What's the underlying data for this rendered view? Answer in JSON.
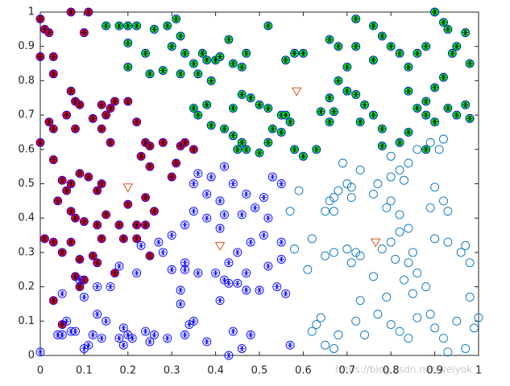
{
  "chart_data": {
    "type": "scatter",
    "xlim": [
      0,
      1
    ],
    "ylim": [
      0,
      1
    ],
    "xticks": [
      0,
      0.1,
      0.2,
      0.3,
      0.4,
      0.5,
      0.6,
      0.7,
      0.8,
      0.9,
      1
    ],
    "yticks": [
      0,
      0.1,
      0.2,
      0.3,
      0.4,
      0.5,
      0.6,
      0.7,
      0.8,
      0.9,
      1
    ],
    "watermark": "https://blog.csdn.net/weiyok",
    "series": [
      {
        "marker": "circle-star",
        "color": "#0000ff",
        "facecolor": "#ff0000",
        "x": [
          0,
          0.01,
          0.02,
          0.07,
          0.11,
          0.1,
          0.03,
          0,
          0.03,
          0.07,
          0.08,
          0.09,
          0.06,
          0.02,
          0.03,
          0.08,
          0.12,
          0.14,
          0.16,
          0.17,
          0.15,
          0.14,
          0.16,
          0.22,
          0.2,
          0.24,
          0.25,
          0.28,
          0.32,
          0.33,
          0.35,
          0.31,
          0.3,
          0.25,
          0.23,
          0,
          0.03,
          0.05,
          0.09,
          0.07,
          0.06,
          0.11,
          0.14,
          0.13,
          0.04,
          0.07,
          0.08,
          0.1,
          0.13,
          0.15,
          0.2,
          0.24,
          0.26,
          0.24,
          0.22,
          0.18,
          0.01,
          0.03,
          0.07,
          0.05,
          0.09,
          0.12,
          0.14,
          0.19,
          0.22,
          0.25,
          0.08,
          0.1,
          0.09,
          0.03,
          0.05,
          0.13,
          0.17
        ],
        "y": [
          0.98,
          0.95,
          0.94,
          1,
          1,
          0.94,
          0.87,
          0.87,
          0.82,
          0.77,
          0.74,
          0.73,
          0.7,
          0.68,
          0.66,
          0.66,
          0.69,
          0.73,
          0.72,
          0.74,
          0.7,
          0.66,
          0.62,
          0.68,
          0.74,
          0.62,
          0.61,
          0.62,
          0.61,
          0.62,
          0.6,
          0.56,
          0.52,
          0.55,
          0.58,
          0.62,
          0.57,
          0.51,
          0.53,
          0.5,
          0.48,
          0.52,
          0.5,
          0.48,
          0.45,
          0.42,
          0.4,
          0.39,
          0.38,
          0.41,
          0.44,
          0.46,
          0.42,
          0.38,
          0.38,
          0.38,
          0.34,
          0.33,
          0.33,
          0.3,
          0.28,
          0.29,
          0.34,
          0.34,
          0.34,
          0.29,
          0.23,
          0.22,
          0.2,
          0.16,
          0.09,
          0.27,
          0.24
        ]
      },
      {
        "marker": "circle-star",
        "color": "#0000ff",
        "facecolor": "#00ff00",
        "x": [
          0.15,
          0.18,
          0.2,
          0.22,
          0.26,
          0.29,
          0.31,
          0.32,
          0.3,
          0.2,
          0.24,
          0.2,
          0.25,
          0.28,
          0.32,
          0.36,
          0.35,
          0.33,
          0.37,
          0.38,
          0.4,
          0.41,
          0.44,
          0.46,
          0.47,
          0.43,
          0.52,
          0.39,
          0.35,
          0.36,
          0.38,
          0.39,
          0.42,
          0.44,
          0.46,
          0.48,
          0.5,
          0.52,
          0.55,
          0.56,
          0.57,
          0.55,
          0.53,
          0.52,
          0.46,
          0.44,
          0.45,
          0.47,
          0.5,
          0.58,
          0.6,
          0.63,
          0.64,
          0.66,
          0.67,
          0.66,
          0.7,
          0.68,
          0.7,
          0.72,
          0.74,
          0.76,
          0.78,
          0.73,
          0.78,
          0.82,
          0.84,
          0.86,
          0.84,
          0.88,
          0.9,
          0.88,
          0.9,
          0.92,
          0.93,
          0.95,
          0.97,
          0.98,
          0.98,
          0.95,
          0.93,
          0.92,
          0.9,
          0.97,
          0.94,
          0.88,
          0.84,
          0.86,
          0.82,
          0.8,
          0.78,
          0.76,
          0.72,
          0.72,
          0.76,
          0.66,
          0.68,
          0.6,
          0.58,
          0.56,
          0.88
        ],
        "y": [
          0.96,
          0.96,
          0.96,
          0.96,
          0.95,
          0.96,
          0.98,
          0.93,
          0.9,
          0.91,
          0.88,
          0.84,
          0.82,
          0.83,
          0.82,
          0.82,
          0.85,
          0.88,
          0.88,
          0.86,
          0.86,
          0.87,
          0.85,
          0.84,
          0.88,
          0.92,
          0.96,
          0.8,
          0.72,
          0.7,
          0.73,
          0.67,
          0.66,
          0.72,
          0.76,
          0.75,
          0.73,
          0.72,
          0.7,
          0.7,
          0.68,
          0.65,
          0.66,
          0.62,
          0.62,
          0.64,
          0.6,
          0.6,
          0.59,
          0.6,
          0.58,
          0.6,
          0.71,
          0.75,
          0.71,
          0.68,
          0.77,
          0.8,
          0.84,
          0.76,
          0.73,
          0.7,
          0.66,
          0.68,
          0.61,
          0.62,
          0.65,
          0.72,
          0.77,
          0.7,
          0.68,
          0.74,
          0.78,
          0.81,
          0.72,
          0.7,
          0.73,
          0.69,
          0.85,
          0.9,
          0.95,
          0.97,
          1,
          0.94,
          0.88,
          0.9,
          0.84,
          0.88,
          0.88,
          0.9,
          0.93,
          0.96,
          0.98,
          0.9,
          0.86,
          0.92,
          0.9,
          0.88,
          0.88,
          0.86,
          0.6
        ]
      },
      {
        "marker": "circle-star",
        "color": "#0000ff",
        "facecolor": "none",
        "x": [
          0,
          0.04,
          0.05,
          0.07,
          0.06,
          0.08,
          0.1,
          0.11,
          0.12,
          0.14,
          0.13,
          0.15,
          0.18,
          0.19,
          0.2,
          0.21,
          0.19,
          0.24,
          0.26,
          0.25,
          0.29,
          0.33,
          0.34,
          0.35,
          0.32,
          0.32,
          0.3,
          0.33,
          0.36,
          0.4,
          0.43,
          0.45,
          0.47,
          0.5,
          0.54,
          0.56,
          0.57,
          0.48,
          0.44,
          0.43,
          0.46,
          0.38,
          0.41,
          0.42,
          0.16,
          0.1,
          0.13,
          0.18,
          0.22,
          0.23,
          0.27,
          0.3,
          0.33,
          0.35,
          0.38,
          0.41,
          0.44,
          0.42,
          0.39,
          0.35,
          0.36,
          0.47,
          0.49,
          0.52,
          0.51,
          0.48,
          0.45,
          0.43,
          0.47,
          0.52,
          0.55,
          0.55,
          0.51,
          0.55,
          0.53,
          0.46,
          0.41,
          0.42,
          0.38,
          0.28,
          0.05,
          0.09,
          0.33
        ],
        "y": [
          0.01,
          0.06,
          0.06,
          0.07,
          0.1,
          0.07,
          0.02,
          0.03,
          0.06,
          0.05,
          0.12,
          0.1,
          0.05,
          0.03,
          0.06,
          0.05,
          0.08,
          0.07,
          0.06,
          0.04,
          0.05,
          0.06,
          0.09,
          0.1,
          0.15,
          0.19,
          0.25,
          0.25,
          0.24,
          0.24,
          0.21,
          0.21,
          0.19,
          0.19,
          0.2,
          0.18,
          0.03,
          0.06,
          0.07,
          0,
          0.02,
          0.04,
          0.16,
          0.22,
          0.2,
          0.17,
          0.2,
          0.26,
          0.24,
          0.32,
          0.33,
          0.35,
          0.38,
          0.42,
          0.47,
          0.45,
          0.5,
          0.55,
          0.52,
          0.5,
          0.53,
          0.47,
          0.43,
          0.4,
          0.35,
          0.33,
          0.3,
          0.27,
          0.24,
          0.26,
          0.28,
          0.33,
          0.46,
          0.5,
          0.52,
          0.41,
          0.37,
          0.41,
          0.4,
          0.3,
          0.18,
          0.22,
          0.27
        ]
      },
      {
        "marker": "circle",
        "color": "#0072bd",
        "facecolor": "none",
        "x": [
          0.58,
          0.59,
          0.61,
          0.62,
          0.65,
          0.66,
          0.67,
          0.68,
          0.7,
          0.71,
          0.71,
          0.67,
          0.65,
          0.67,
          0.7,
          0.72,
          0.73,
          0.71,
          0.76,
          0.79,
          0.8,
          0.82,
          0.8,
          0.8,
          0.82,
          0.84,
          0.86,
          0.89,
          0.92,
          0.91,
          0.9,
          0.92,
          0.89,
          0.84,
          0.82,
          0.8,
          0.78,
          0.81,
          0.84,
          0.85,
          0.86,
          0.83,
          0.79,
          0.77,
          0.8,
          0.82,
          0.84,
          0.86,
          0.89,
          0.9,
          0.92,
          0.93,
          0.95,
          0.97,
          0.98,
          0.99,
          1,
          0.98,
          0.96,
          0.93,
          0.9,
          0.88,
          0.85,
          0.76,
          0.73,
          0.72,
          0.74,
          0.68,
          0.67,
          0.65,
          0.63,
          0.64,
          0.62,
          0.57,
          0.69,
          0.73,
          0.77,
          0.83,
          0.93,
          0.97
        ],
        "y": [
          0.31,
          0.48,
          0.25,
          0.34,
          0.42,
          0.45,
          0.46,
          0.48,
          0.5,
          0.49,
          0.46,
          0.42,
          0.29,
          0.3,
          0.31,
          0.3,
          0.29,
          0.27,
          0.47,
          0.43,
          0.45,
          0.41,
          0.52,
          0.58,
          0.54,
          0.56,
          0.6,
          0.62,
          0.63,
          0.6,
          0.49,
          0.45,
          0.43,
          0.37,
          0.36,
          0.33,
          0.31,
          0.28,
          0.27,
          0.3,
          0.24,
          0.22,
          0.17,
          0.12,
          0.09,
          0.07,
          0.05,
          0.11,
          0.12,
          0.08,
          0.05,
          0.01,
          0.1,
          0.02,
          0.17,
          0.08,
          0.11,
          0.27,
          0.3,
          0.33,
          0.34,
          0.2,
          0.18,
          0.23,
          0.16,
          0.1,
          0.06,
          0.06,
          0.02,
          0.03,
          0.09,
          0.11,
          0.07,
          0.42,
          0.56,
          0.54,
          0.5,
          0.51,
          0.42,
          0.32
        ]
      },
      {
        "marker": "triangle-down",
        "color": "#d95319",
        "facecolor": "none",
        "x": [
          0.2,
          0.41,
          0.585,
          0.765
        ],
        "y": [
          0.49,
          0.32,
          0.77,
          0.33
        ]
      }
    ]
  }
}
